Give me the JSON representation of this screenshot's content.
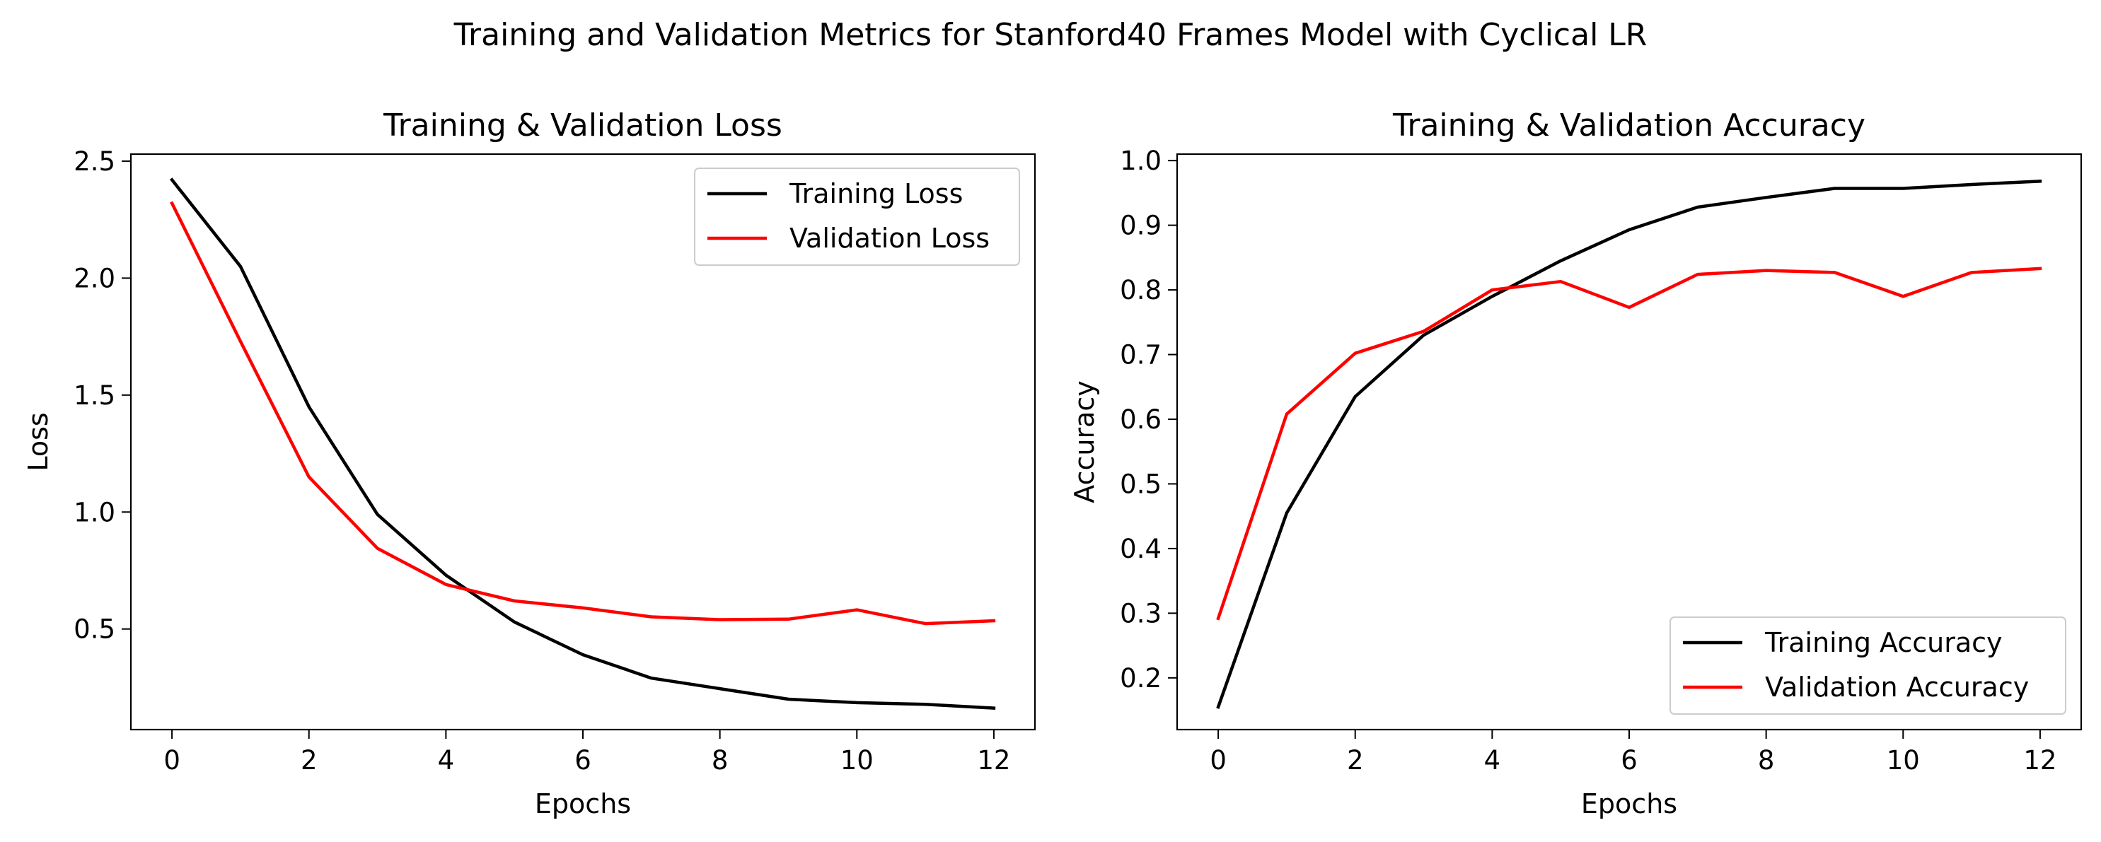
{
  "figure": {
    "suptitle": "Training and Validation Metrics for Stanford40 Frames Model with Cyclical LR"
  },
  "chart_data": [
    {
      "type": "line",
      "title": "Training & Validation Loss",
      "xlabel": "Epochs",
      "ylabel": "Loss",
      "x": [
        0,
        1,
        2,
        3,
        4,
        5,
        6,
        7,
        8,
        9,
        10,
        11,
        12
      ],
      "xlim": [
        -0.6,
        12.6
      ],
      "ylim": [
        0.07,
        2.53
      ],
      "xticks": [
        0,
        2,
        4,
        6,
        8,
        10,
        12
      ],
      "xtick_labels": [
        "0",
        "2",
        "4",
        "6",
        "8",
        "10",
        "12"
      ],
      "yticks": [
        0.5,
        1.0,
        1.5,
        2.0,
        2.5
      ],
      "ytick_labels": [
        "0.5",
        "1.0",
        "1.5",
        "2.0",
        "2.5"
      ],
      "grid": false,
      "legend_position": "upper right",
      "series": [
        {
          "name": "Training Loss",
          "color": "#000000",
          "values": [
            2.42,
            2.05,
            1.45,
            0.99,
            0.73,
            0.53,
            0.39,
            0.29,
            0.245,
            0.2,
            0.185,
            0.178,
            0.162
          ]
        },
        {
          "name": "Validation Loss",
          "color": "#ff0000",
          "values": [
            2.32,
            1.73,
            1.15,
            0.845,
            0.69,
            0.62,
            0.59,
            0.552,
            0.54,
            0.542,
            0.582,
            0.523,
            0.535
          ]
        }
      ]
    },
    {
      "type": "line",
      "title": "Training & Validation Accuracy",
      "xlabel": "Epochs",
      "ylabel": "Accuracy",
      "x": [
        0,
        1,
        2,
        3,
        4,
        5,
        6,
        7,
        8,
        9,
        10,
        11,
        12
      ],
      "xlim": [
        -0.6,
        12.6
      ],
      "ylim": [
        0.12,
        1.01
      ],
      "xticks": [
        0,
        2,
        4,
        6,
        8,
        10,
        12
      ],
      "xtick_labels": [
        "0",
        "2",
        "4",
        "6",
        "8",
        "10",
        "12"
      ],
      "yticks": [
        0.2,
        0.3,
        0.4,
        0.5,
        0.6,
        0.7,
        0.8,
        0.9,
        1.0
      ],
      "ytick_labels": [
        "0.2",
        "0.3",
        "0.4",
        "0.5",
        "0.6",
        "0.7",
        "0.8",
        "0.9",
        "1.0"
      ],
      "grid": false,
      "legend_position": "lower right",
      "series": [
        {
          "name": "Training Accuracy",
          "color": "#000000",
          "values": [
            0.155,
            0.455,
            0.635,
            0.73,
            0.79,
            0.845,
            0.893,
            0.928,
            0.943,
            0.957,
            0.957,
            0.963,
            0.968
          ]
        },
        {
          "name": "Validation Accuracy",
          "color": "#ff0000",
          "values": [
            0.292,
            0.608,
            0.702,
            0.736,
            0.8,
            0.813,
            0.773,
            0.824,
            0.83,
            0.827,
            0.79,
            0.827,
            0.833
          ]
        }
      ]
    }
  ]
}
